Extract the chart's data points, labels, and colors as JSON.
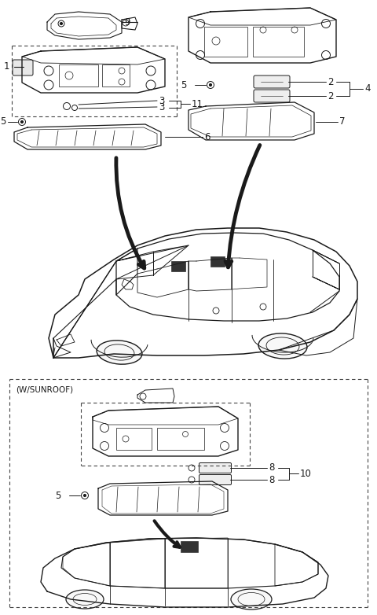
{
  "bg_color": "#ffffff",
  "fig_width": 4.8,
  "fig_height": 7.82,
  "dpi": 100,
  "line_color": "#1a1a1a",
  "font_size_label": 8.5,
  "sunroof_label": "(W/SUNROOF)"
}
